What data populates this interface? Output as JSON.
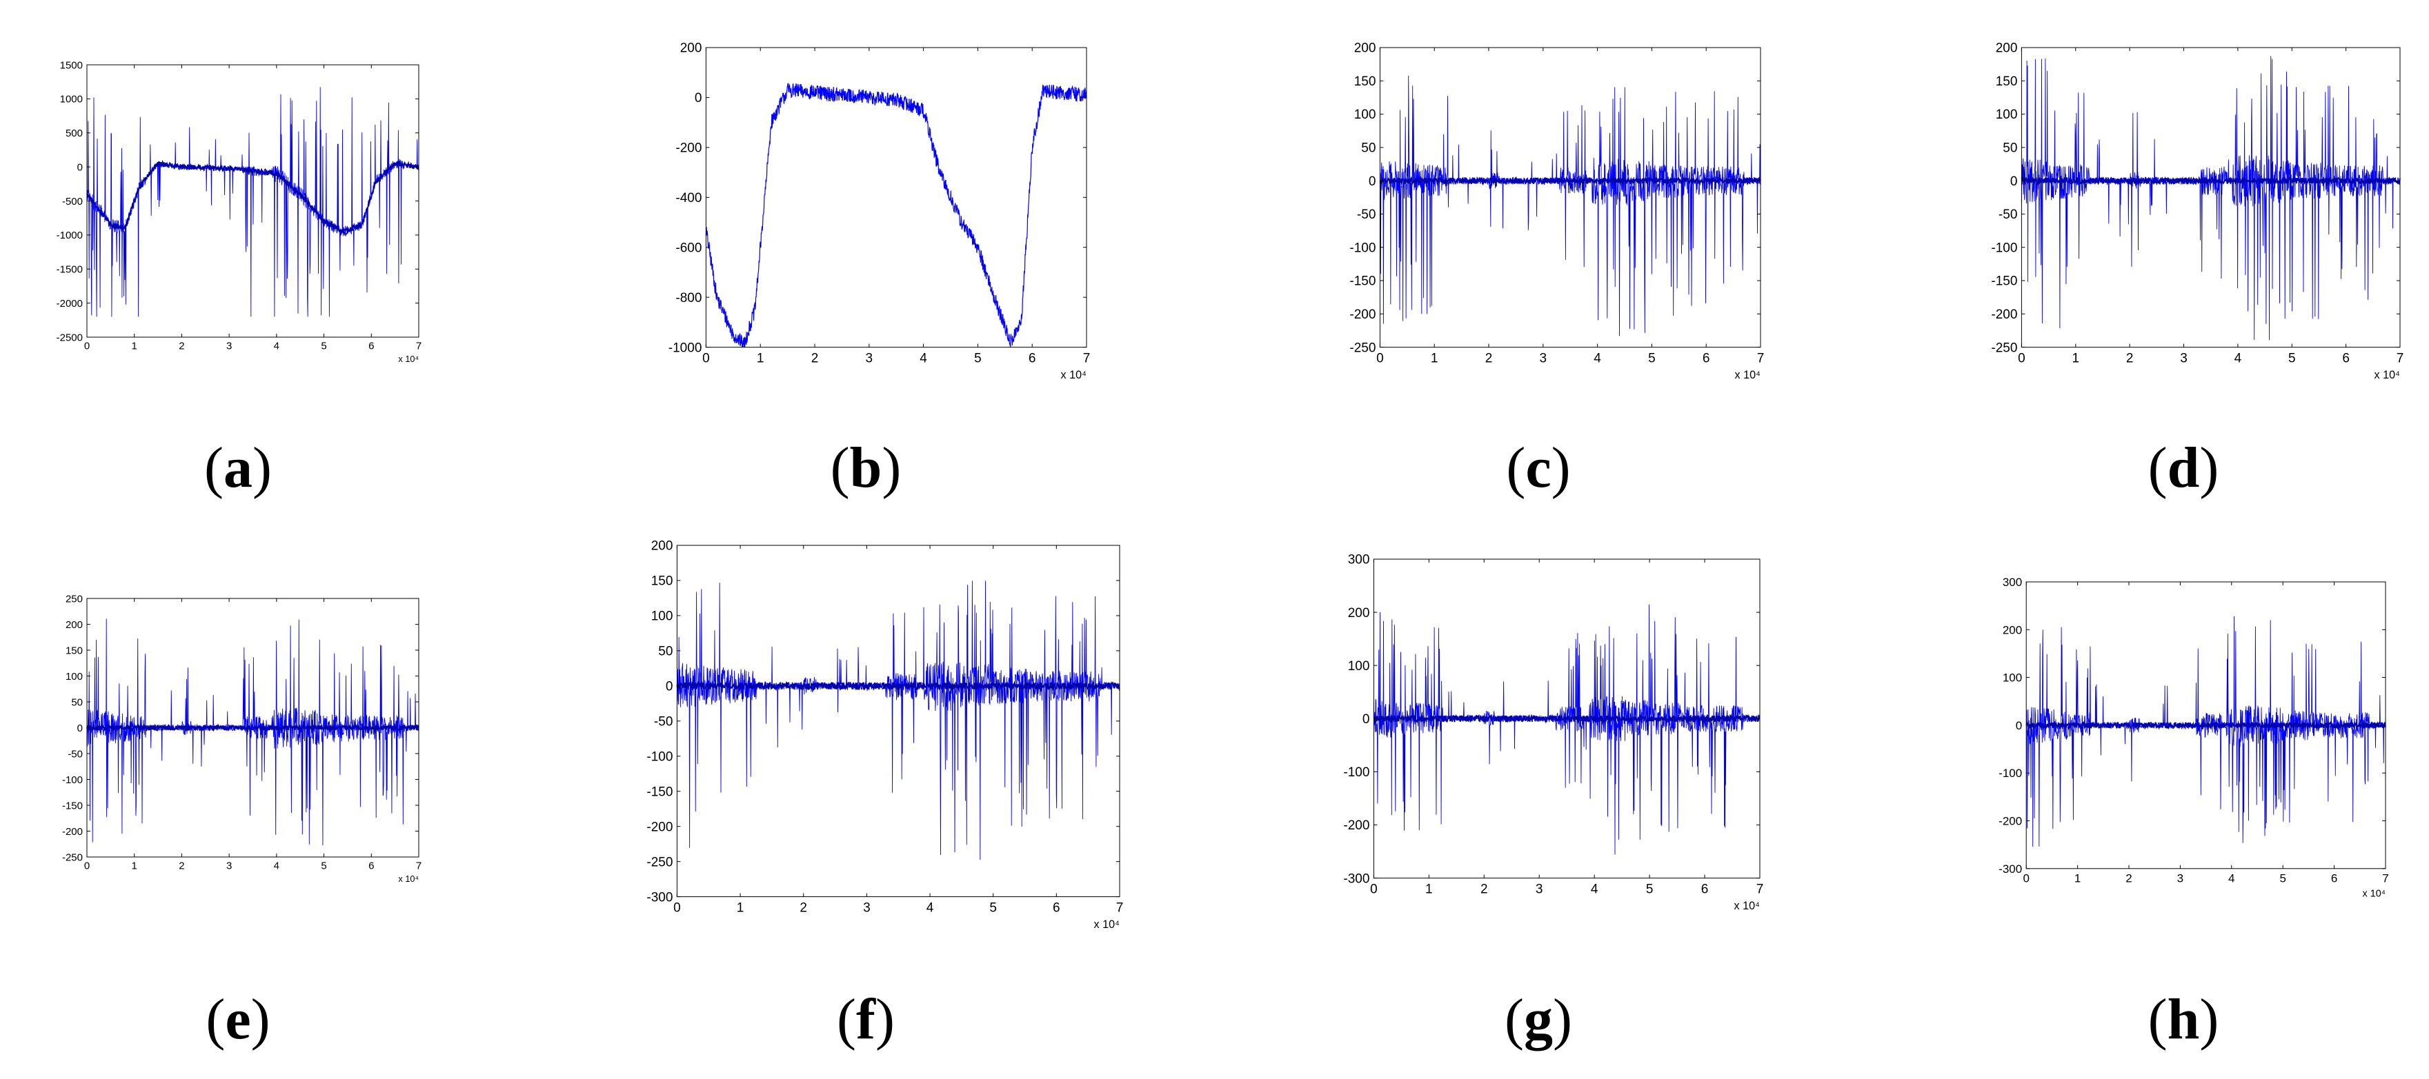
{
  "figure": {
    "captions": [
      "a",
      "b",
      "c",
      "d",
      "e",
      "f",
      "g",
      "h"
    ]
  },
  "colors": {
    "signal": "#0000ff",
    "axes": "#000000",
    "background": "#ffffff"
  },
  "chart_data": [
    {
      "id": "a",
      "type": "line",
      "title": "",
      "xlabel": "",
      "ylabel": "",
      "xlim": [
        0,
        7
      ],
      "ylim": [
        -2500,
        1500
      ],
      "xticks": [
        "0",
        "1",
        "2",
        "3",
        "4",
        "5",
        "6",
        "7"
      ],
      "yticks": [
        "1500",
        "1000",
        "500",
        "0",
        "-500",
        "-1000",
        "-1500",
        "-2000",
        "-2500"
      ],
      "x_exponent_label": "x 10⁴",
      "series": [
        {
          "values_summary": "baseline envelope",
          "x": [
            0,
            0.5,
            0.8,
            1.1,
            1.5,
            2,
            3,
            4,
            4.5,
            5,
            5.4,
            5.8,
            6.1,
            6.5,
            7
          ],
          "y": [
            -400,
            -850,
            -900,
            -300,
            50,
            0,
            -20,
            -100,
            -400,
            -800,
            -950,
            -850,
            -200,
            50,
            0
          ],
          "spike_min": -2200,
          "spike_max": 1250
        }
      ]
    },
    {
      "id": "b",
      "type": "line",
      "title": "",
      "xlabel": "",
      "ylabel": "",
      "xlim": [
        0,
        7
      ],
      "ylim": [
        -1000,
        200
      ],
      "xticks": [
        "0",
        "1",
        "2",
        "3",
        "4",
        "5",
        "6",
        "7"
      ],
      "yticks": [
        "200",
        "0",
        "-200",
        "-400",
        "-600",
        "-800",
        "-1000"
      ],
      "x_exponent_label": "x 10⁴",
      "series": [
        {
          "x": [
            0,
            0.2,
            0.5,
            0.7,
            0.9,
            1.2,
            1.5,
            2,
            2.5,
            3,
            3.5,
            4,
            4.3,
            4.7,
            5,
            5.3,
            5.6,
            5.8,
            6,
            6.2,
            6.5,
            7
          ],
          "y": [
            -530,
            -800,
            -950,
            -990,
            -850,
            -100,
            30,
            20,
            10,
            0,
            -10,
            -50,
            -300,
            -500,
            -600,
            -800,
            -980,
            -900,
            -200,
            30,
            20,
            10
          ]
        }
      ]
    },
    {
      "id": "c",
      "type": "line",
      "title": "",
      "xlabel": "",
      "ylabel": "",
      "xlim": [
        0,
        7
      ],
      "ylim": [
        -250,
        200
      ],
      "xticks": [
        "0",
        "1",
        "2",
        "3",
        "4",
        "5",
        "6",
        "7"
      ],
      "yticks": [
        "200",
        "150",
        "100",
        "50",
        "0",
        "-50",
        "-100",
        "-150",
        "-200",
        "-250"
      ],
      "x_exponent_label": "x 10⁴",
      "series": [
        {
          "baseline": 0,
          "spike_min": -235,
          "spike_max": 170
        }
      ]
    },
    {
      "id": "d",
      "type": "line",
      "title": "",
      "xlabel": "",
      "ylabel": "",
      "xlim": [
        0,
        7
      ],
      "ylim": [
        -250,
        200
      ],
      "xticks": [
        "0",
        "1",
        "2",
        "3",
        "4",
        "5",
        "6",
        "7"
      ],
      "yticks": [
        "200",
        "150",
        "100",
        "50",
        "0",
        "-50",
        "-100",
        "-150",
        "-200",
        "-250"
      ],
      "x_exponent_label": "x 10⁴",
      "series": [
        {
          "baseline": 0,
          "spike_min": -240,
          "spike_max": 195
        }
      ]
    },
    {
      "id": "e",
      "type": "line",
      "title": "",
      "xlabel": "",
      "ylabel": "",
      "xlim": [
        0,
        7
      ],
      "ylim": [
        -250,
        250
      ],
      "xticks": [
        "0",
        "1",
        "2",
        "3",
        "4",
        "5",
        "6",
        "7"
      ],
      "yticks": [
        "250",
        "200",
        "150",
        "100",
        "50",
        "0",
        "-50",
        "-100",
        "-150",
        "-200",
        "-250"
      ],
      "x_exponent_label": "x 10⁴",
      "series": [
        {
          "baseline": 0,
          "spike_min": -235,
          "spike_max": 215
        }
      ]
    },
    {
      "id": "f",
      "type": "line",
      "title": "",
      "xlabel": "",
      "ylabel": "",
      "xlim": [
        0,
        7
      ],
      "ylim": [
        -300,
        200
      ],
      "xticks": [
        "0",
        "1",
        "2",
        "3",
        "4",
        "5",
        "6",
        "7"
      ],
      "yticks": [
        "200",
        "150",
        "100",
        "50",
        "0",
        "-50",
        "-100",
        "-150",
        "-200",
        "-250",
        "-300"
      ],
      "x_exponent_label": "x 10⁴",
      "series": [
        {
          "baseline": 0,
          "spike_min": -250,
          "spike_max": 160
        }
      ]
    },
    {
      "id": "g",
      "type": "line",
      "title": "",
      "xlabel": "",
      "ylabel": "",
      "xlim": [
        0,
        7
      ],
      "ylim": [
        -300,
        300
      ],
      "xticks": [
        "0",
        "1",
        "2",
        "3",
        "4",
        "5",
        "6",
        "7"
      ],
      "yticks": [
        "300",
        "200",
        "100",
        "0",
        "-100",
        "-200",
        "-300"
      ],
      "x_exponent_label": "x 10⁴",
      "series": [
        {
          "baseline": 0,
          "spike_min": -260,
          "spike_max": 215
        }
      ]
    },
    {
      "id": "h",
      "type": "line",
      "title": "",
      "xlabel": "",
      "ylabel": "",
      "xlim": [
        0,
        7
      ],
      "ylim": [
        -300,
        300
      ],
      "xticks": [
        "0",
        "1",
        "2",
        "3",
        "4",
        "5",
        "6",
        "7"
      ],
      "yticks": [
        "300",
        "200",
        "100",
        "0",
        "-100",
        "-200",
        "-300"
      ],
      "x_exponent_label": "x 10⁴",
      "series": [
        {
          "baseline": 0,
          "spike_min": -255,
          "spike_max": 250
        }
      ]
    }
  ]
}
